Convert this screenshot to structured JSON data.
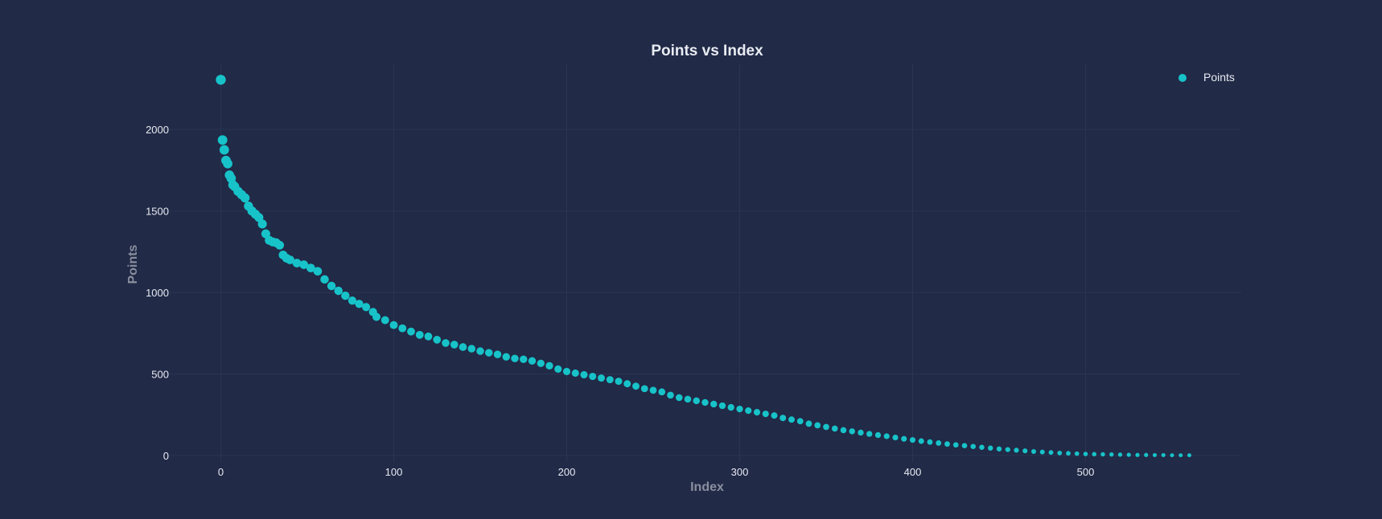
{
  "chart_data": {
    "type": "scatter",
    "title": "Points vs Index",
    "xlabel": "Index",
    "ylabel": "Points",
    "xlim": [
      -30,
      590
    ],
    "ylim": [
      -40,
      2400
    ],
    "xticks": [
      0,
      100,
      200,
      300,
      400,
      500
    ],
    "yticks": [
      0,
      500,
      1000,
      1500,
      2000
    ],
    "grid": true,
    "legend_position": "top-right",
    "series": [
      {
        "name": "Points",
        "color": "#17c3c9",
        "x": [
          0,
          1,
          2,
          3,
          4,
          5,
          6,
          7,
          8,
          10,
          12,
          14,
          16,
          18,
          20,
          22,
          24,
          26,
          28,
          30,
          32,
          34,
          36,
          38,
          40,
          44,
          48,
          52,
          56,
          60,
          64,
          68,
          72,
          76,
          80,
          84,
          88,
          90,
          95,
          100,
          105,
          110,
          115,
          120,
          125,
          130,
          135,
          140,
          145,
          150,
          155,
          160,
          165,
          170,
          175,
          180,
          185,
          190,
          195,
          200,
          205,
          210,
          215,
          220,
          225,
          230,
          235,
          240,
          245,
          250,
          255,
          260,
          265,
          270,
          275,
          280,
          285,
          290,
          295,
          300,
          305,
          310,
          315,
          320,
          325,
          330,
          335,
          340,
          345,
          350,
          355,
          360,
          365,
          370,
          375,
          380,
          385,
          390,
          395,
          400,
          405,
          410,
          415,
          420,
          425,
          430,
          435,
          440,
          445,
          450,
          455,
          460,
          465,
          470,
          475,
          480,
          485,
          490,
          495,
          500,
          505,
          510,
          515,
          520,
          525,
          530,
          535,
          540,
          545,
          550,
          555,
          560
        ],
        "y": [
          2305,
          1935,
          1875,
          1810,
          1790,
          1720,
          1700,
          1660,
          1650,
          1620,
          1600,
          1580,
          1530,
          1500,
          1480,
          1460,
          1420,
          1360,
          1320,
          1310,
          1305,
          1290,
          1230,
          1210,
          1200,
          1180,
          1170,
          1150,
          1130,
          1080,
          1040,
          1010,
          980,
          950,
          930,
          910,
          880,
          850,
          830,
          800,
          780,
          760,
          740,
          730,
          710,
          690,
          680,
          665,
          655,
          640,
          630,
          620,
          605,
          595,
          590,
          580,
          565,
          550,
          530,
          515,
          505,
          495,
          485,
          475,
          465,
          455,
          440,
          425,
          410,
          400,
          390,
          370,
          355,
          345,
          335,
          325,
          315,
          305,
          295,
          285,
          275,
          265,
          255,
          245,
          230,
          220,
          210,
          195,
          185,
          175,
          165,
          155,
          148,
          140,
          132,
          125,
          118,
          110,
          102,
          95,
          88,
          82,
          76,
          70,
          65,
          60,
          55,
          50,
          45,
          40,
          36,
          32,
          28,
          24,
          21,
          18,
          15,
          13,
          11,
          9,
          8,
          7,
          6,
          5,
          4,
          3,
          3,
          2,
          2,
          1,
          1,
          1
        ]
      }
    ]
  }
}
